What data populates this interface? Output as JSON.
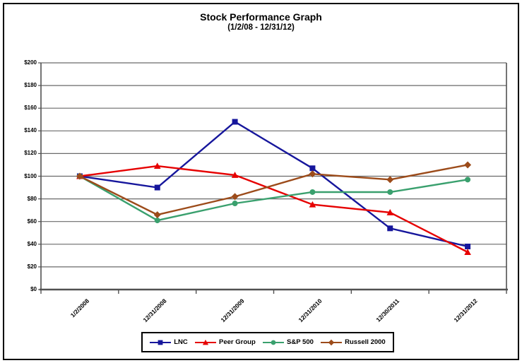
{
  "frame": {
    "border_color": "#000000",
    "background": "#ffffff"
  },
  "chart_data": {
    "type": "line",
    "title": "Stock Performance Graph",
    "subtitle": "(1/2/08 - 12/31/12)",
    "categories": [
      "1/2/2008",
      "12/31/2008",
      "12/31/2009",
      "12/31/2010",
      "12/30/2011",
      "12/31/2012"
    ],
    "y_tick_labels": [
      "$0",
      "$20",
      "$40",
      "$60",
      "$80",
      "$100",
      "$120",
      "$140",
      "$160",
      "$180",
      "$200"
    ],
    "ylim": [
      0,
      200
    ],
    "y_step": 20,
    "grid": true,
    "legend_position": "bottom-center",
    "colors": {
      "grid": "#6a6a6a",
      "axis": "#515151",
      "text": "#000000"
    },
    "series": [
      {
        "name": "LNC",
        "marker": "square",
        "color": "#16169c",
        "values": [
          100,
          90,
          148,
          107,
          54,
          38
        ]
      },
      {
        "name": "Peer Group",
        "marker": "triangle",
        "color": "#e60000",
        "values": [
          100,
          109,
          101,
          75,
          68,
          33
        ]
      },
      {
        "name": "S&P 500",
        "marker": "circle",
        "color": "#3aa06e",
        "values": [
          100,
          61,
          76,
          86,
          86,
          97
        ]
      },
      {
        "name": "Russell 2000",
        "marker": "diamond",
        "color": "#9c4b1a",
        "values": [
          100,
          66,
          82,
          102,
          97,
          110
        ]
      }
    ]
  }
}
